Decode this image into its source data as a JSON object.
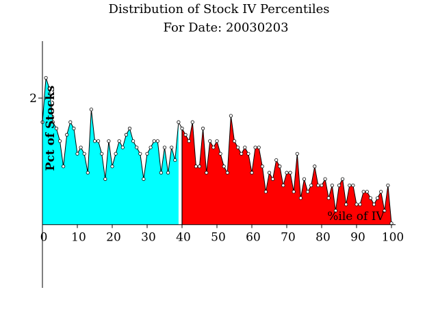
{
  "chart_data": {
    "type": "area",
    "title": "Distribution of Stock IV Percentiles",
    "subtitle": "For Date: 20030203",
    "xlabel": "%ile of IV",
    "ylabel": "Pct of Stocks",
    "xlim": [
      0,
      100
    ],
    "ylim": [
      -1,
      2.9
    ],
    "x_ticks": [
      0,
      10,
      20,
      30,
      40,
      50,
      60,
      70,
      80,
      90,
      100
    ],
    "y_ticks": [
      2
    ],
    "grid": false,
    "legend": "none",
    "split_at": 39.5,
    "colors": {
      "low": "#00ffff",
      "high": "#ff0000",
      "line": "#000000"
    },
    "x": [
      0,
      1,
      2,
      3,
      4,
      5,
      6,
      7,
      8,
      9,
      10,
      11,
      12,
      13,
      14,
      15,
      16,
      17,
      18,
      19,
      20,
      21,
      22,
      23,
      24,
      25,
      26,
      27,
      28,
      29,
      30,
      31,
      32,
      33,
      34,
      35,
      36,
      37,
      38,
      39,
      40,
      41,
      42,
      43,
      44,
      45,
      46,
      47,
      48,
      49,
      50,
      51,
      52,
      53,
      54,
      55,
      56,
      57,
      58,
      59,
      60,
      61,
      62,
      63,
      64,
      65,
      66,
      67,
      68,
      69,
      70,
      71,
      72,
      73,
      74,
      75,
      76,
      77,
      78,
      79,
      80,
      81,
      82,
      83,
      84,
      85,
      86,
      87,
      88,
      89,
      90,
      91,
      92,
      93,
      94,
      95,
      96,
      97,
      98,
      99,
      100
    ],
    "values": [
      1.62,
      2.32,
      2.15,
      1.62,
      1.52,
      1.32,
      0.92,
      1.42,
      1.62,
      1.52,
      1.12,
      1.22,
      1.12,
      0.82,
      1.82,
      1.32,
      1.32,
      1.12,
      0.72,
      1.32,
      0.92,
      1.12,
      1.32,
      1.22,
      1.42,
      1.52,
      1.32,
      1.22,
      1.12,
      0.72,
      1.12,
      1.22,
      1.32,
      1.32,
      0.82,
      1.22,
      0.82,
      1.22,
      1.02,
      1.62,
      1.52,
      1.42,
      1.32,
      1.62,
      0.92,
      0.92,
      1.52,
      0.82,
      1.32,
      1.22,
      1.32,
      1.12,
      0.92,
      0.82,
      1.72,
      1.32,
      1.22,
      1.12,
      1.22,
      1.12,
      0.82,
      1.22,
      1.22,
      0.92,
      0.52,
      0.82,
      0.72,
      1.02,
      0.92,
      0.62,
      0.82,
      0.82,
      0.52,
      1.12,
      0.42,
      0.72,
      0.52,
      0.62,
      0.92,
      0.62,
      0.62,
      0.72,
      0.42,
      0.62,
      0.22,
      0.62,
      0.72,
      0.32,
      0.62,
      0.62,
      0.32,
      0.32,
      0.52,
      0.52,
      0.42,
      0.32,
      0.42,
      0.52,
      0.22,
      0.62,
      0.02
    ]
  }
}
